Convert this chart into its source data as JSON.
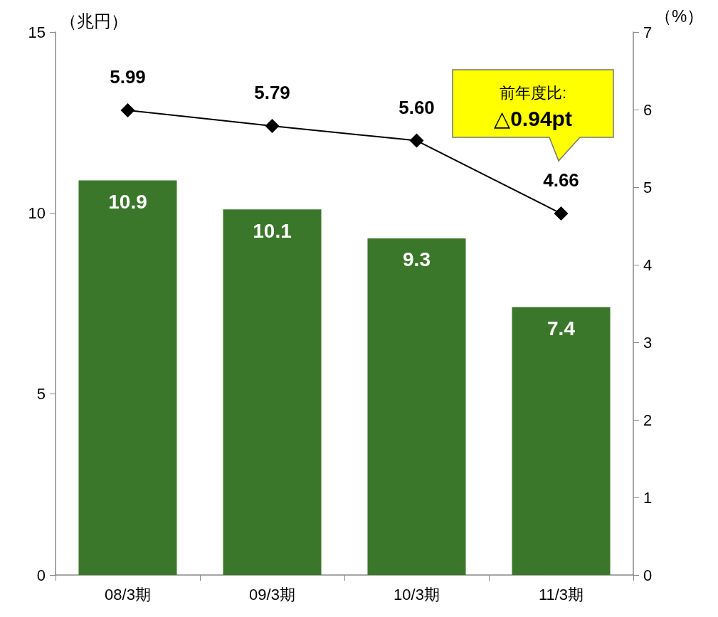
{
  "chart_data": {
    "type": "bar",
    "ylabel": "（兆円）",
    "y2label": "（%）",
    "categories": [
      "08/3期",
      "09/3期",
      "10/3期",
      "11/3期"
    ],
    "series": [
      {
        "color": "#3b772b",
        "values": [
          10.9,
          10.1,
          9.3,
          7.4
        ]
      },
      {
        "type": "line",
        "axis": "y2",
        "color": "#000000",
        "values": [
          5.99,
          5.79,
          5.6,
          4.66
        ],
        "value_labels": [
          "5.99",
          "5.79",
          "5.60",
          "4.66"
        ]
      }
    ],
    "ylim": [
      0,
      15
    ],
    "yticks": [
      0,
      5,
      10,
      15
    ],
    "y2lim": [
      0,
      7
    ],
    "y2ticks": [
      0,
      1,
      2,
      3,
      4,
      5,
      6,
      7
    ],
    "annotations": [
      "前年度比:",
      "△0.94pt"
    ],
    "data_labels": true,
    "grid": false,
    "marker": "diamond",
    "line_style": "solid"
  }
}
